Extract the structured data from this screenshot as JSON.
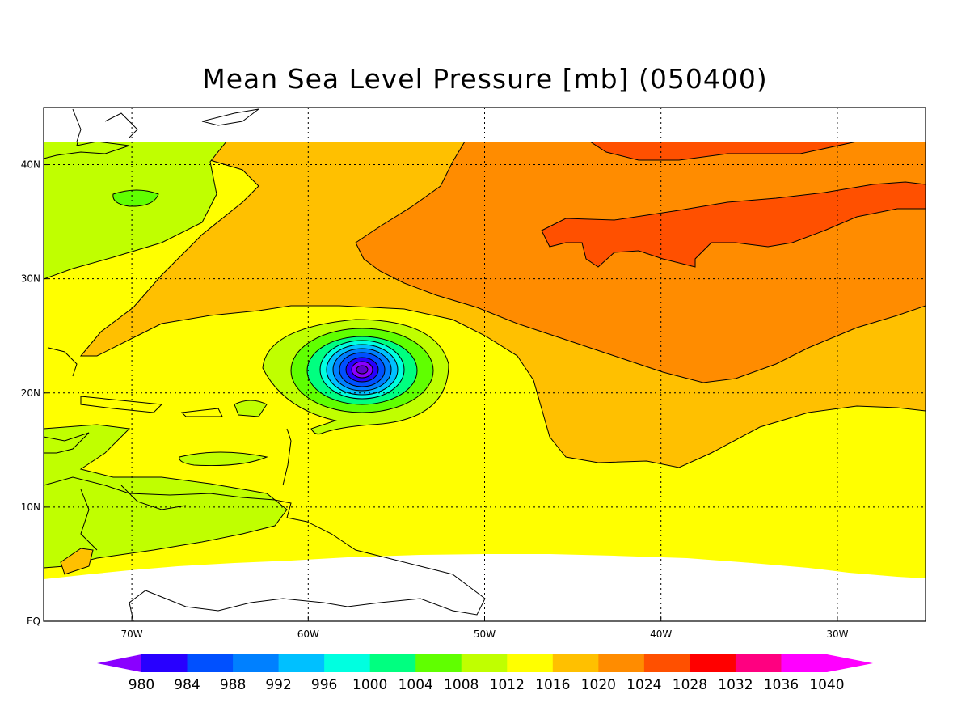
{
  "title": "Mean Sea Level Pressure [mb] (050400)",
  "map": {
    "variable": "Mean Sea Level Pressure",
    "units": "mb",
    "lon_range": [
      -75,
      -25
    ],
    "lat_range": [
      0,
      45
    ],
    "data_lat_range": [
      4,
      42
    ],
    "lon_ticks": [
      {
        "value": -70,
        "label": "70W"
      },
      {
        "value": -60,
        "label": "60W"
      },
      {
        "value": -50,
        "label": "50W"
      },
      {
        "value": -40,
        "label": "40W"
      },
      {
        "value": -30,
        "label": "30W"
      }
    ],
    "lat_ticks": [
      {
        "value": 0,
        "label": "EQ"
      },
      {
        "value": 10,
        "label": "10N"
      },
      {
        "value": 20,
        "label": "20N"
      },
      {
        "value": 30,
        "label": "30N"
      },
      {
        "value": 40,
        "label": "40N"
      }
    ],
    "grid": "dotted",
    "low_center": {
      "lon": -57,
      "lat": 22,
      "min_pressure_band": "<980"
    }
  },
  "colorbar": {
    "levels": [
      "980",
      "984",
      "988",
      "992",
      "996",
      "1000",
      "1004",
      "1008",
      "1012",
      "1016",
      "1020",
      "1024",
      "1028",
      "1032",
      "1036",
      "1040"
    ],
    "colors": [
      "#8a00ff",
      "#2800ff",
      "#0050ff",
      "#0080ff",
      "#00c0ff",
      "#00ffe0",
      "#00ff80",
      "#60ff00",
      "#c0ff00",
      "#ffff00",
      "#ffc000",
      "#ff8c00",
      "#ff5000",
      "#ff0000",
      "#ff0080",
      "#ff00ff",
      "#ff00ff"
    ],
    "extend": "both"
  }
}
